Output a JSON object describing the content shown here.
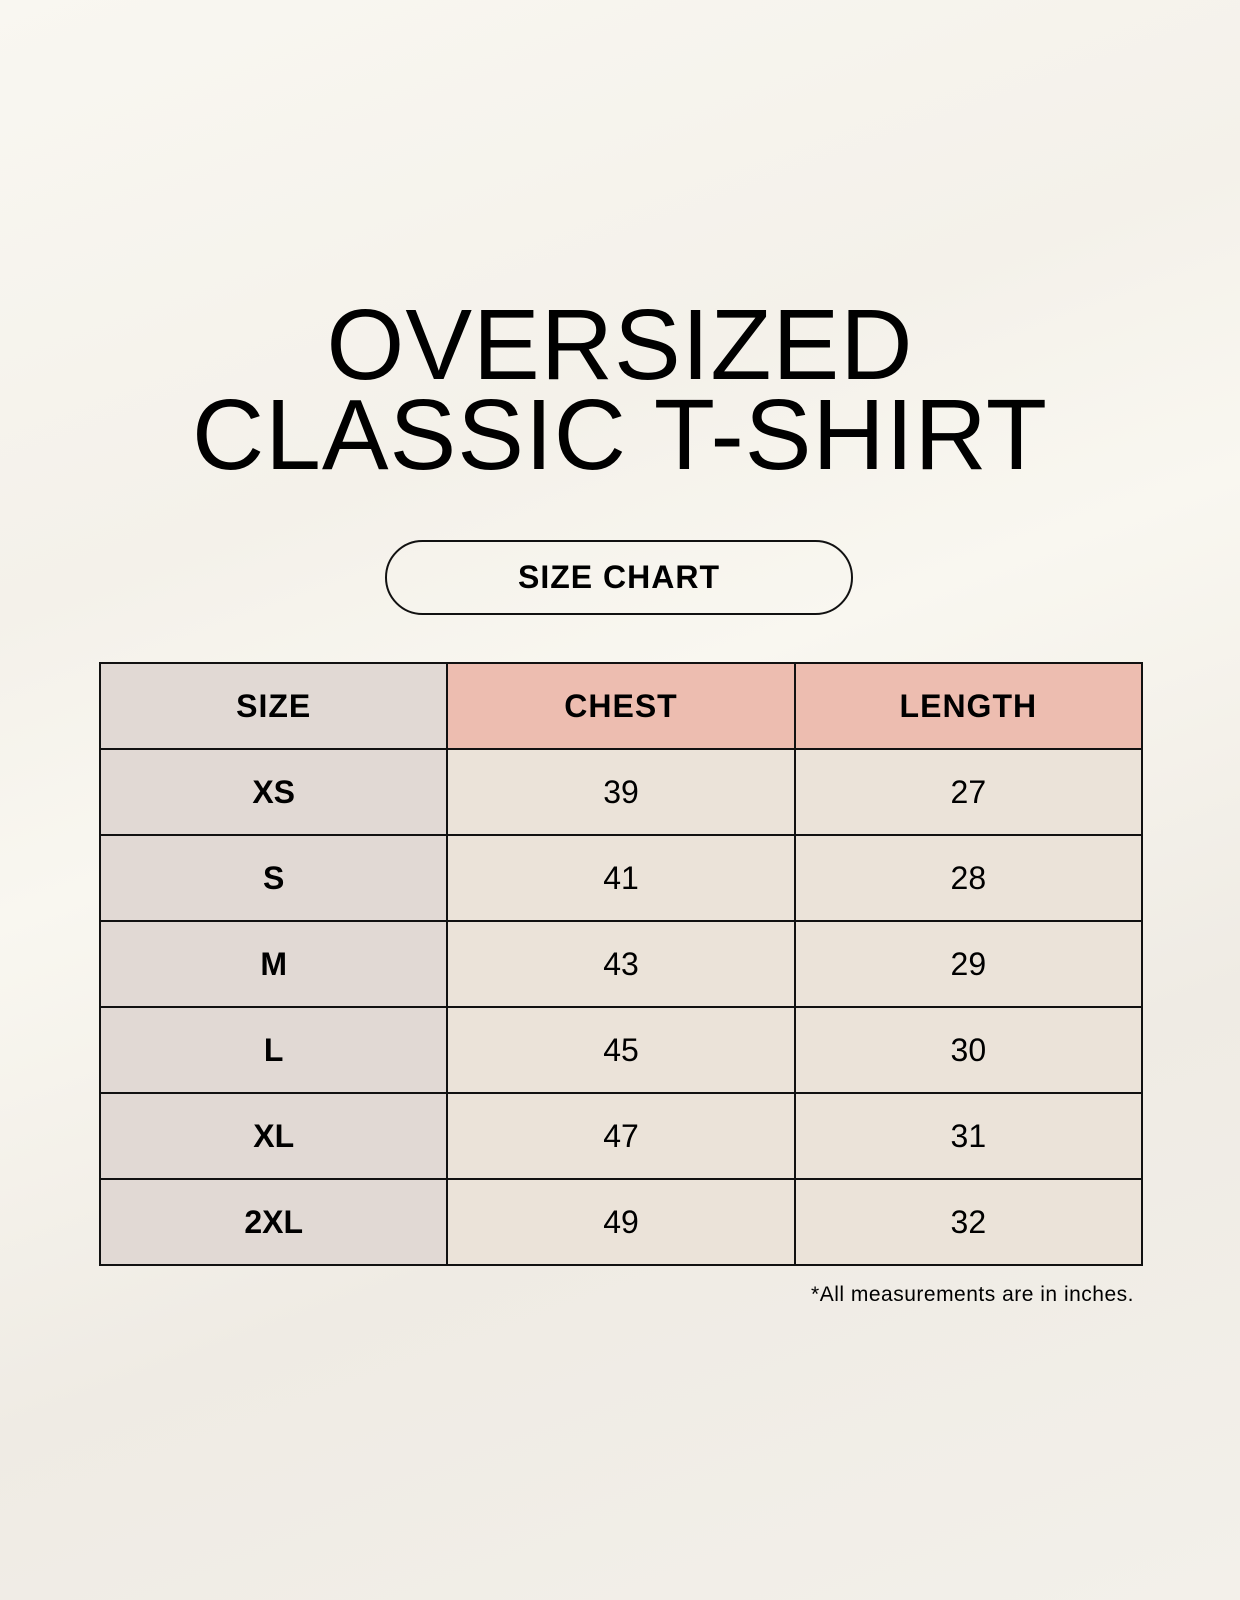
{
  "title": {
    "line1": "OVERSIZED",
    "line2": "CLASSIC T-SHIRT"
  },
  "badge": "SIZE CHART",
  "table": {
    "headers": [
      "SIZE",
      "CHEST",
      "LENGTH"
    ],
    "rows": [
      [
        "XS",
        "39",
        "27"
      ],
      [
        "S",
        "41",
        "28"
      ],
      [
        "M",
        "43",
        "29"
      ],
      [
        "L",
        "45",
        "30"
      ],
      [
        "XL",
        "47",
        "31"
      ],
      [
        "2XL",
        "49",
        "32"
      ]
    ]
  },
  "footnote": "*All measurements are in inches.",
  "colors": {
    "size_column": "#e1d9d4",
    "header_accent": "#edbdb0",
    "cell": "#ebe3d9"
  }
}
